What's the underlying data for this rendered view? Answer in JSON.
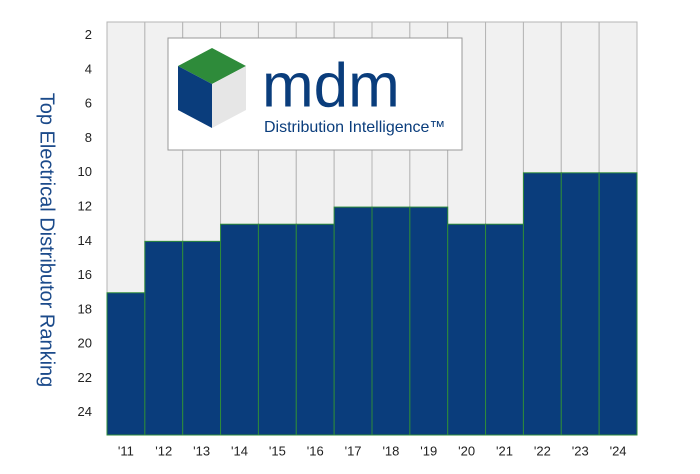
{
  "chart_data": {
    "type": "bar",
    "ylabel": "Top Electrical Distributor Ranking",
    "categories": [
      "'11",
      "'12",
      "'13",
      "'14",
      "'15",
      "'16",
      "'17",
      "'18",
      "'19",
      "'20",
      "'21",
      "'22",
      "'23",
      "'24"
    ],
    "values": [
      17,
      14,
      14,
      13,
      13,
      13,
      12,
      12,
      12,
      13,
      13,
      10,
      10,
      10
    ],
    "color": "#0a3d7c",
    "ylim": [
      25.3,
      1.2
    ],
    "yticks": [
      2,
      4,
      6,
      8,
      10,
      12,
      14,
      16,
      18,
      20,
      22,
      24
    ],
    "logo": {
      "name": "mdm",
      "tagline": "Distribution Intelligence™"
    }
  }
}
